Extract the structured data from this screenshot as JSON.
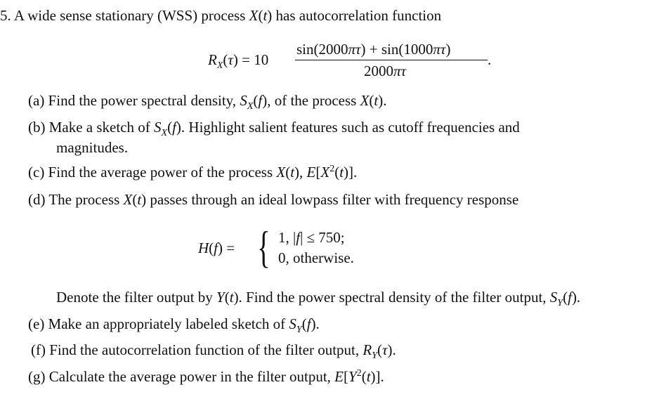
{
  "lines": [
    {
      "segs": [
        [
          "5.  A wide sense stationary (WSS) process ",
          0
        ],
        [
          "X",
          1
        ],
        [
          "(",
          0
        ],
        [
          "t",
          1
        ],
        [
          ") has autocorrelation function",
          0
        ]
      ]
    },
    {
      "segs": [
        [
          "(a)  Find the power spectral density, ",
          0
        ],
        [
          "S",
          1
        ],
        [
          "X",
          2
        ],
        [
          "(",
          0
        ],
        [
          "f",
          1
        ],
        [
          "), of the process ",
          0
        ],
        [
          "X",
          1
        ],
        [
          "(",
          0
        ],
        [
          "t",
          1
        ],
        [
          ").",
          0
        ]
      ]
    },
    {
      "segs": [
        [
          "(b)  Make a sketch of ",
          0
        ],
        [
          "S",
          1
        ],
        [
          "X",
          2
        ],
        [
          "(",
          0
        ],
        [
          "f",
          1
        ],
        [
          ").  Highlight salient features such as cutoff frequencies and",
          0
        ]
      ]
    },
    {
      "segs": [
        [
          "magnitudes.",
          0
        ]
      ]
    },
    {
      "segs": [
        [
          "(c)  Find the average power of the process ",
          0
        ],
        [
          "X",
          1
        ],
        [
          "(",
          0
        ],
        [
          "t",
          1
        ],
        [
          "), ",
          0
        ],
        [
          "E",
          1
        ],
        [
          "[",
          0
        ],
        [
          "X",
          1
        ],
        [
          "2",
          3
        ],
        [
          "(",
          0
        ],
        [
          "t",
          1
        ],
        [
          ")].",
          0
        ]
      ]
    },
    {
      "segs": [
        [
          "(d)  The process ",
          0
        ],
        [
          "X",
          1
        ],
        [
          "(",
          0
        ],
        [
          "t",
          1
        ],
        [
          ") passes through an ideal lowpass filter with frequency response",
          0
        ]
      ]
    },
    {
      "segs": [
        [
          "Denote the filter output by ",
          0
        ],
        [
          "Y",
          1
        ],
        [
          "(",
          0
        ],
        [
          "t",
          1
        ],
        [
          "). Find the power spectral density of the filter output, ",
          0
        ],
        [
          "S",
          1
        ],
        [
          "Y",
          2
        ],
        [
          "(",
          0
        ],
        [
          "f",
          1
        ],
        [
          ").",
          0
        ]
      ]
    },
    {
      "segs": [
        [
          "(e) Make an appropriately labeled sketch of ",
          0
        ],
        [
          "S",
          1
        ],
        [
          "Y",
          2
        ],
        [
          "(",
          0
        ],
        [
          "f",
          1
        ],
        [
          ").",
          0
        ]
      ]
    },
    {
      "segs": [
        [
          "(f)  Find the autocorrelation function of the filter output, ",
          0
        ],
        [
          "R",
          1
        ],
        [
          "Y",
          2
        ],
        [
          "(",
          0
        ],
        [
          "τ",
          1
        ],
        [
          ").",
          0
        ]
      ]
    },
    {
      "segs": [
        [
          "(g)  Calculate the average power in the filter output, ",
          0
        ],
        [
          "E",
          1
        ],
        [
          "[",
          0
        ],
        [
          "Y",
          1
        ],
        [
          "2",
          3
        ],
        [
          "(",
          0
        ],
        [
          "t",
          1
        ],
        [
          ")].",
          0
        ]
      ]
    }
  ],
  "eq1": {
    "lhs": [
      [
        "R",
        1
      ],
      [
        "X",
        2
      ],
      [
        "(",
        0
      ],
      [
        "τ",
        1
      ],
      [
        ") = 10",
        0
      ]
    ],
    "num": [
      [
        "sin(2000",
        0
      ],
      [
        "πτ",
        1
      ],
      [
        ") + sin(1000",
        0
      ],
      [
        "πτ",
        1
      ],
      [
        ")",
        0
      ]
    ],
    "den": [
      [
        "2000",
        0
      ],
      [
        "πτ",
        1
      ]
    ],
    "end": "."
  },
  "eq2": {
    "lhs": [
      [
        "H",
        1
      ],
      [
        "(",
        0
      ],
      [
        "f",
        1
      ],
      [
        ") =",
        0
      ]
    ],
    "row1": [
      [
        "1,   |",
        0
      ],
      [
        "f",
        1
      ],
      [
        "| ≤ 750;",
        0
      ]
    ],
    "row2": [
      [
        "0,   otherwise.",
        0
      ]
    ]
  }
}
